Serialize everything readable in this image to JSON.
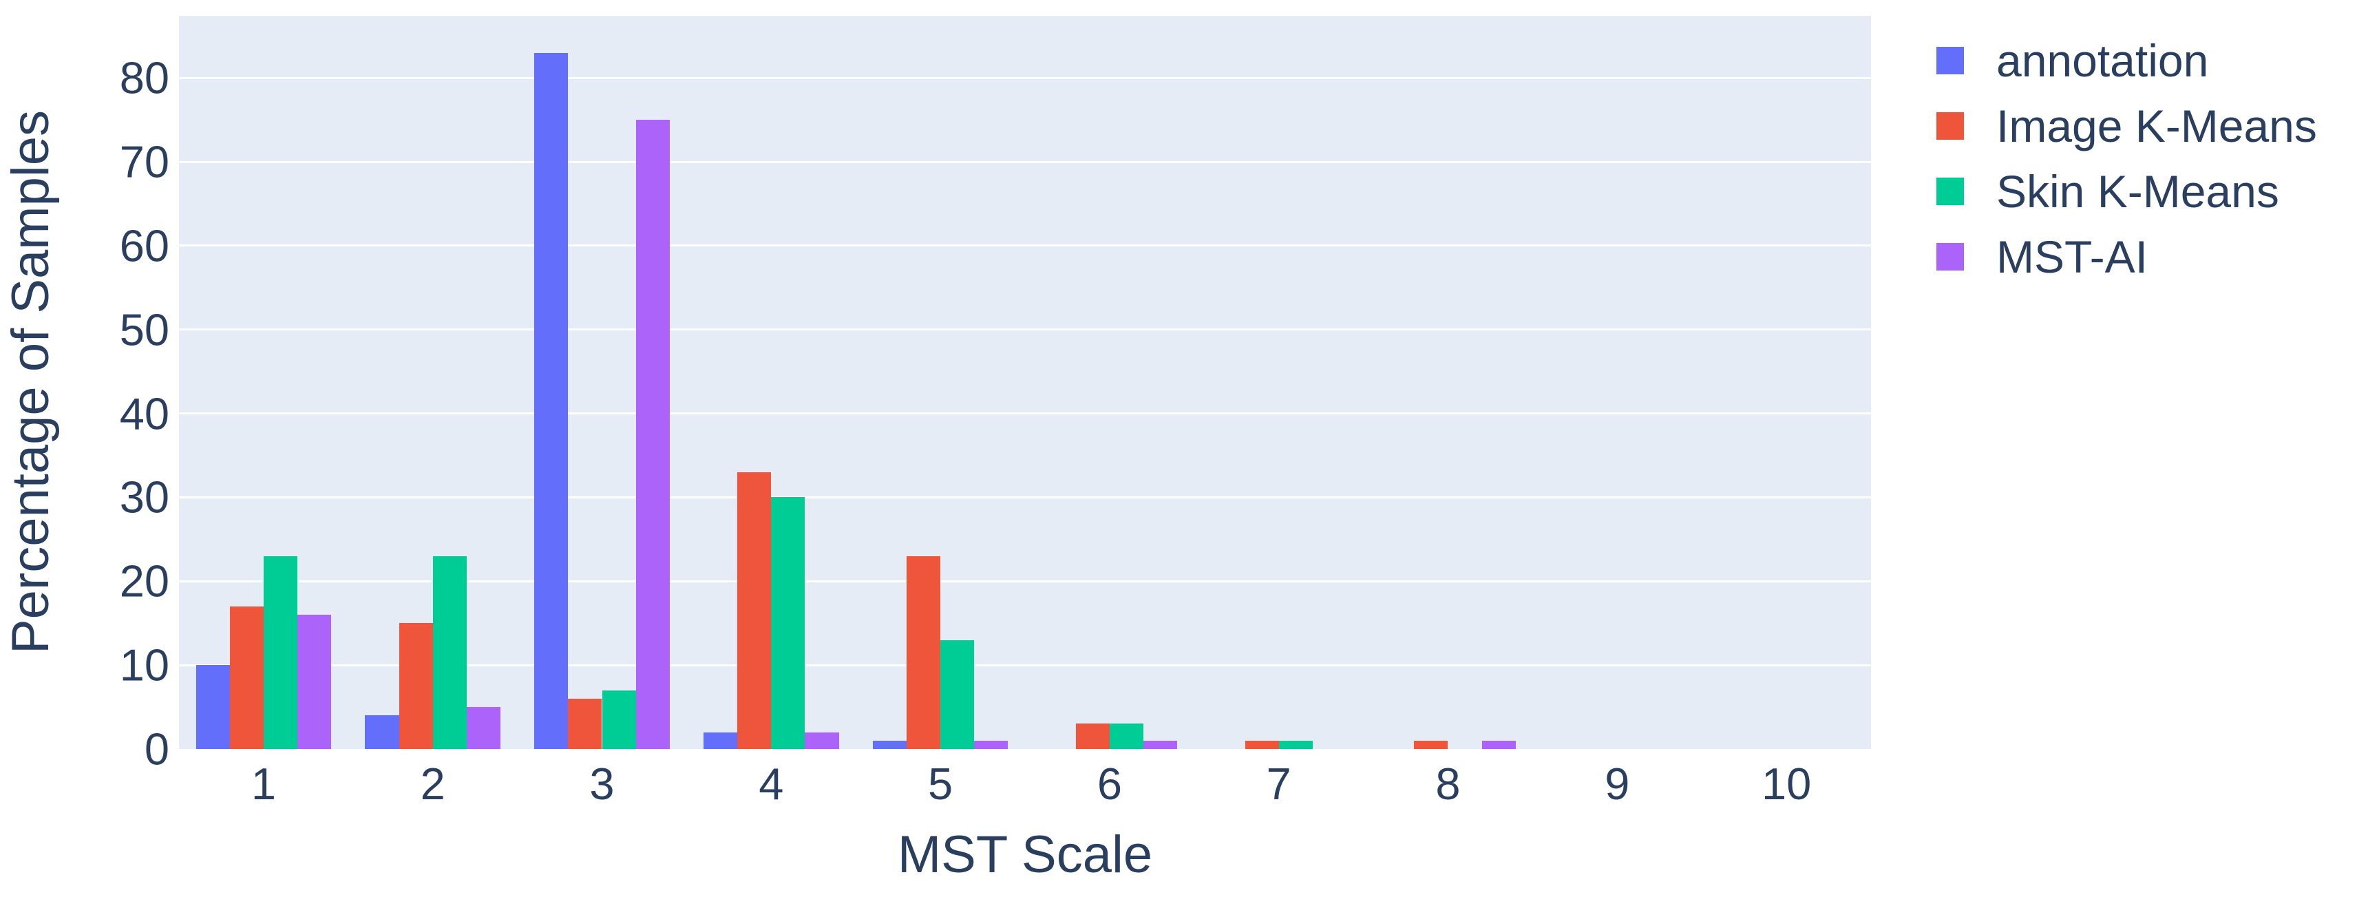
{
  "chart_data": {
    "type": "bar",
    "title": "",
    "xlabel": "MST Scale",
    "ylabel": "Percentage of Samples",
    "categories": [
      "1",
      "2",
      "3",
      "4",
      "5",
      "6",
      "7",
      "8",
      "9",
      "10"
    ],
    "series": [
      {
        "name": "annotation",
        "color": "#636EFA",
        "values": [
          10,
          4,
          83,
          2,
          1,
          0,
          0,
          0,
          0,
          0
        ]
      },
      {
        "name": "Image K-Means",
        "color": "#EF553B",
        "values": [
          17,
          15,
          6,
          33,
          23,
          3,
          1,
          1,
          0,
          0
        ]
      },
      {
        "name": "Skin K-Means",
        "color": "#00CC96",
        "values": [
          23,
          23,
          7,
          30,
          13,
          3,
          1,
          0,
          0,
          0
        ]
      },
      {
        "name": "MST-AI",
        "color": "#AB63FA",
        "values": [
          16,
          5,
          75,
          2,
          1,
          1,
          0,
          1,
          0,
          0
        ]
      }
    ],
    "yticks": [
      0,
      10,
      20,
      30,
      40,
      50,
      60,
      70,
      80
    ],
    "ylim": [
      0,
      87.4
    ],
    "grid": true,
    "legend_position": "right",
    "plot_bg_color": "#E5ECF6",
    "grid_color": "#FFFFFF",
    "text_color": "#2A3F5F",
    "bar_gap_fraction": 0.2
  }
}
